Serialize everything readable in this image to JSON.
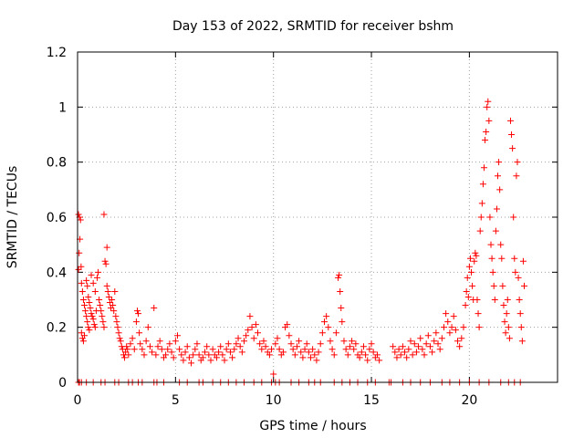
{
  "chart_data": {
    "type": "scatter",
    "title": "Day 153 of 2022, SRMTID for receiver bshm",
    "xlabel": "GPS time / hours",
    "ylabel": "SRMTID / TECUs",
    "xlim": [
      0,
      24.5
    ],
    "ylim": [
      0,
      1.2
    ],
    "xticks": [
      0,
      5,
      10,
      15,
      20
    ],
    "yticks": [
      0,
      0.2,
      0.4,
      0.6,
      0.8,
      1,
      1.2
    ],
    "ytick_labels": [
      "0",
      "0.2",
      "0.4",
      "0.6",
      "0.8",
      "1",
      "1.2"
    ],
    "xtick_labels": [
      "0",
      "5",
      "10",
      "15",
      "20"
    ],
    "grid": true,
    "marker": "plus",
    "series": [
      {
        "name": "SRMTID",
        "color": "#ff0000",
        "points": [
          [
            0.05,
            0.61
          ],
          [
            0.1,
            0.6
          ],
          [
            0.15,
            0.59
          ],
          [
            0.12,
            0.52
          ],
          [
            0.08,
            0.47
          ],
          [
            0.18,
            0.42
          ],
          [
            0.05,
            0.41
          ],
          [
            0.2,
            0.36
          ],
          [
            0.25,
            0.33
          ],
          [
            0.3,
            0.3
          ],
          [
            0.35,
            0.28
          ],
          [
            0.4,
            0.26
          ],
          [
            0.45,
            0.24
          ],
          [
            0.5,
            0.22
          ],
          [
            0.55,
            0.2
          ],
          [
            0.6,
            0.19
          ],
          [
            0.2,
            0.18
          ],
          [
            0.25,
            0.16
          ],
          [
            0.3,
            0.15
          ],
          [
            0.35,
            0.17
          ],
          [
            0.45,
            0.37
          ],
          [
            0.5,
            0.35
          ],
          [
            0.55,
            0.31
          ],
          [
            0.6,
            0.29
          ],
          [
            0.65,
            0.27
          ],
          [
            0.7,
            0.25
          ],
          [
            0.75,
            0.24
          ],
          [
            0.8,
            0.23
          ],
          [
            0.85,
            0.21
          ],
          [
            0.9,
            0.2
          ],
          [
            0.95,
            0.26
          ],
          [
            1.0,
            0.38
          ],
          [
            1.05,
            0.4
          ],
          [
            0.7,
            0.39
          ],
          [
            0.8,
            0.36
          ],
          [
            0.9,
            0.33
          ],
          [
            1.1,
            0.3
          ],
          [
            1.15,
            0.28
          ],
          [
            1.2,
            0.26
          ],
          [
            1.25,
            0.24
          ],
          [
            1.3,
            0.22
          ],
          [
            1.35,
            0.2
          ],
          [
            1.4,
            0.44
          ],
          [
            1.45,
            0.43
          ],
          [
            1.35,
            0.61
          ],
          [
            1.5,
            0.49
          ],
          [
            1.5,
            0.35
          ],
          [
            1.55,
            0.33
          ],
          [
            1.6,
            0.31
          ],
          [
            1.65,
            0.29
          ],
          [
            1.7,
            0.27
          ],
          [
            1.75,
            0.3
          ],
          [
            1.8,
            0.28
          ],
          [
            1.85,
            0.26
          ],
          [
            1.9,
            0.33
          ],
          [
            1.95,
            0.24
          ],
          [
            2.0,
            0.22
          ],
          [
            2.05,
            0.2
          ],
          [
            2.1,
            0.18
          ],
          [
            2.15,
            0.16
          ],
          [
            2.2,
            0.15
          ],
          [
            2.25,
            0.13
          ],
          [
            2.3,
            0.12
          ],
          [
            2.35,
            0.1
          ],
          [
            2.4,
            0.09
          ],
          [
            2.45,
            0.11
          ],
          [
            2.5,
            0.13
          ],
          [
            2.55,
            0.12
          ],
          [
            2.6,
            0.1
          ],
          [
            2.7,
            0.14
          ],
          [
            2.8,
            0.16
          ],
          [
            2.9,
            0.12
          ],
          [
            3.0,
            0.22
          ],
          [
            3.05,
            0.26
          ],
          [
            3.1,
            0.25
          ],
          [
            3.15,
            0.18
          ],
          [
            3.2,
            0.14
          ],
          [
            3.3,
            0.12
          ],
          [
            3.4,
            0.1
          ],
          [
            3.5,
            0.15
          ],
          [
            3.6,
            0.2
          ],
          [
            3.7,
            0.13
          ],
          [
            3.8,
            0.11
          ],
          [
            3.9,
            0.27
          ],
          [
            4.0,
            0.1
          ],
          [
            4.1,
            0.13
          ],
          [
            4.2,
            0.15
          ],
          [
            4.3,
            0.12
          ],
          [
            4.4,
            0.09
          ],
          [
            4.5,
            0.1
          ],
          [
            4.6,
            0.12
          ],
          [
            4.7,
            0.14
          ],
          [
            4.8,
            0.11
          ],
          [
            4.9,
            0.09
          ],
          [
            5.0,
            0.15
          ],
          [
            5.1,
            0.17
          ],
          [
            5.2,
            0.12
          ],
          [
            5.3,
            0.1
          ],
          [
            5.4,
            0.08
          ],
          [
            5.5,
            0.11
          ],
          [
            5.6,
            0.13
          ],
          [
            5.7,
            0.09
          ],
          [
            5.8,
            0.07
          ],
          [
            5.9,
            0.1
          ],
          [
            6.0,
            0.12
          ],
          [
            6.1,
            0.14
          ],
          [
            6.2,
            0.1
          ],
          [
            6.3,
            0.08
          ],
          [
            6.4,
            0.09
          ],
          [
            6.5,
            0.11
          ],
          [
            6.6,
            0.13
          ],
          [
            6.7,
            0.1
          ],
          [
            6.8,
            0.08
          ],
          [
            6.9,
            0.12
          ],
          [
            7.0,
            0.1
          ],
          [
            7.1,
            0.09
          ],
          [
            7.2,
            0.11
          ],
          [
            7.3,
            0.13
          ],
          [
            7.4,
            0.1
          ],
          [
            7.5,
            0.08
          ],
          [
            7.6,
            0.12
          ],
          [
            7.7,
            0.14
          ],
          [
            7.8,
            0.11
          ],
          [
            7.9,
            0.09
          ],
          [
            8.0,
            0.12
          ],
          [
            8.1,
            0.14
          ],
          [
            8.2,
            0.16
          ],
          [
            8.3,
            0.13
          ],
          [
            8.4,
            0.11
          ],
          [
            8.5,
            0.15
          ],
          [
            8.6,
            0.17
          ],
          [
            8.7,
            0.19
          ],
          [
            8.8,
            0.24
          ],
          [
            8.9,
            0.2
          ],
          [
            9.0,
            0.16
          ],
          [
            9.1,
            0.21
          ],
          [
            9.2,
            0.18
          ],
          [
            9.3,
            0.14
          ],
          [
            9.4,
            0.12
          ],
          [
            9.5,
            0.15
          ],
          [
            9.6,
            0.13
          ],
          [
            9.7,
            0.11
          ],
          [
            9.8,
            0.1
          ],
          [
            9.9,
            0.12
          ],
          [
            10.0,
            0.03
          ],
          [
            10.1,
            0.14
          ],
          [
            10.2,
            0.16
          ],
          [
            10.3,
            0.12
          ],
          [
            10.4,
            0.1
          ],
          [
            10.5,
            0.11
          ],
          [
            10.6,
            0.2
          ],
          [
            10.7,
            0.21
          ],
          [
            10.8,
            0.17
          ],
          [
            10.9,
            0.14
          ],
          [
            11.0,
            0.12
          ],
          [
            11.1,
            0.1
          ],
          [
            11.2,
            0.13
          ],
          [
            11.3,
            0.15
          ],
          [
            11.4,
            0.11
          ],
          [
            11.5,
            0.09
          ],
          [
            11.6,
            0.12
          ],
          [
            11.7,
            0.14
          ],
          [
            11.8,
            0.11
          ],
          [
            11.9,
            0.09
          ],
          [
            12.0,
            0.12
          ],
          [
            12.1,
            0.1
          ],
          [
            12.2,
            0.08
          ],
          [
            12.3,
            0.11
          ],
          [
            12.4,
            0.14
          ],
          [
            12.5,
            0.18
          ],
          [
            12.6,
            0.22
          ],
          [
            12.7,
            0.24
          ],
          [
            12.8,
            0.2
          ],
          [
            12.9,
            0.15
          ],
          [
            13.0,
            0.12
          ],
          [
            13.1,
            0.1
          ],
          [
            13.2,
            0.18
          ],
          [
            13.3,
            0.38
          ],
          [
            13.35,
            0.39
          ],
          [
            13.4,
            0.33
          ],
          [
            13.45,
            0.27
          ],
          [
            13.5,
            0.22
          ],
          [
            13.6,
            0.15
          ],
          [
            13.7,
            0.12
          ],
          [
            13.8,
            0.1
          ],
          [
            13.9,
            0.13
          ],
          [
            14.0,
            0.15
          ],
          [
            14.1,
            0.12
          ],
          [
            14.2,
            0.14
          ],
          [
            14.3,
            0.1
          ],
          [
            14.4,
            0.09
          ],
          [
            14.5,
            0.11
          ],
          [
            14.6,
            0.13
          ],
          [
            14.7,
            0.1
          ],
          [
            14.8,
            0.08
          ],
          [
            14.9,
            0.12
          ],
          [
            15.0,
            0.14
          ],
          [
            15.1,
            0.11
          ],
          [
            15.2,
            0.09
          ],
          [
            15.3,
            0.1
          ],
          [
            15.4,
            0.08
          ],
          [
            16.1,
            0.13
          ],
          [
            16.2,
            0.11
          ],
          [
            16.3,
            0.09
          ],
          [
            16.4,
            0.12
          ],
          [
            16.5,
            0.1
          ],
          [
            16.6,
            0.13
          ],
          [
            16.7,
            0.11
          ],
          [
            16.8,
            0.09
          ],
          [
            16.9,
            0.12
          ],
          [
            17.0,
            0.15
          ],
          [
            17.1,
            0.1
          ],
          [
            17.2,
            0.14
          ],
          [
            17.3,
            0.11
          ],
          [
            17.4,
            0.13
          ],
          [
            17.5,
            0.16
          ],
          [
            17.6,
            0.12
          ],
          [
            17.7,
            0.1
          ],
          [
            17.8,
            0.14
          ],
          [
            17.9,
            0.17
          ],
          [
            18.0,
            0.13
          ],
          [
            18.1,
            0.11
          ],
          [
            18.2,
            0.15
          ],
          [
            18.3,
            0.18
          ],
          [
            18.4,
            0.14
          ],
          [
            18.5,
            0.12
          ],
          [
            18.6,
            0.16
          ],
          [
            18.7,
            0.2
          ],
          [
            18.8,
            0.25
          ],
          [
            18.9,
            0.22
          ],
          [
            19.0,
            0.18
          ],
          [
            19.1,
            0.2
          ],
          [
            19.2,
            0.24
          ],
          [
            19.3,
            0.19
          ],
          [
            19.4,
            0.15
          ],
          [
            19.5,
            0.13
          ],
          [
            19.6,
            0.16
          ],
          [
            19.7,
            0.2
          ],
          [
            19.8,
            0.28
          ],
          [
            19.85,
            0.33
          ],
          [
            19.9,
            0.38
          ],
          [
            19.95,
            0.31
          ],
          [
            20.0,
            0.42
          ],
          [
            20.05,
            0.45
          ],
          [
            20.1,
            0.4
          ],
          [
            20.15,
            0.35
          ],
          [
            20.2,
            0.3
          ],
          [
            20.25,
            0.44
          ],
          [
            20.3,
            0.47
          ],
          [
            20.35,
            0.46
          ],
          [
            20.4,
            0.3
          ],
          [
            20.45,
            0.25
          ],
          [
            20.5,
            0.2
          ],
          [
            20.55,
            0.55
          ],
          [
            20.6,
            0.6
          ],
          [
            20.65,
            0.65
          ],
          [
            20.7,
            0.72
          ],
          [
            20.75,
            0.78
          ],
          [
            20.8,
            0.88
          ],
          [
            20.85,
            0.91
          ],
          [
            20.9,
            1.0
          ],
          [
            20.95,
            1.02
          ],
          [
            21.0,
            0.95
          ],
          [
            21.05,
            0.6
          ],
          [
            21.1,
            0.5
          ],
          [
            21.15,
            0.45
          ],
          [
            21.2,
            0.4
          ],
          [
            21.25,
            0.35
          ],
          [
            21.3,
            0.3
          ],
          [
            21.35,
            0.55
          ],
          [
            21.4,
            0.63
          ],
          [
            21.45,
            0.75
          ],
          [
            21.5,
            0.8
          ],
          [
            21.55,
            0.7
          ],
          [
            21.6,
            0.5
          ],
          [
            21.65,
            0.45
          ],
          [
            21.7,
            0.35
          ],
          [
            21.75,
            0.28
          ],
          [
            21.8,
            0.22
          ],
          [
            21.85,
            0.18
          ],
          [
            21.9,
            0.25
          ],
          [
            21.95,
            0.3
          ],
          [
            22.0,
            0.2
          ],
          [
            22.05,
            0.16
          ],
          [
            22.1,
            0.95
          ],
          [
            22.15,
            0.9
          ],
          [
            22.2,
            0.85
          ],
          [
            22.25,
            0.6
          ],
          [
            22.3,
            0.45
          ],
          [
            22.35,
            0.4
          ],
          [
            22.4,
            0.75
          ],
          [
            22.45,
            0.8
          ],
          [
            22.5,
            0.38
          ],
          [
            22.55,
            0.3
          ],
          [
            22.6,
            0.25
          ],
          [
            22.65,
            0.2
          ],
          [
            22.7,
            0.15
          ],
          [
            22.75,
            0.44
          ],
          [
            22.8,
            0.35
          ]
        ]
      }
    ],
    "zero_markers": [
      0.05,
      0.1,
      0.2,
      0.45,
      0.8,
      1.2,
      1.4,
      1.9,
      2.1,
      2.6,
      2.8,
      3.1,
      3.3,
      3.9,
      4.05,
      4.4,
      5.2,
      5.6,
      6.2,
      6.4,
      6.9,
      7.3,
      7.7,
      8.1,
      8.5,
      9.0,
      9.4,
      9.9,
      10.1,
      10.3,
      10.9,
      11.3,
      11.8,
      12.1,
      12.4,
      13.1,
      13.5,
      13.9,
      14.3,
      14.8,
      15.2,
      15.9,
      16.0,
      16.6,
      17.0,
      17.5,
      18.0,
      18.6,
      19.0,
      19.5,
      20.0,
      20.5,
      21.0,
      21.6,
      22.0,
      22.3,
      22.6
    ]
  }
}
